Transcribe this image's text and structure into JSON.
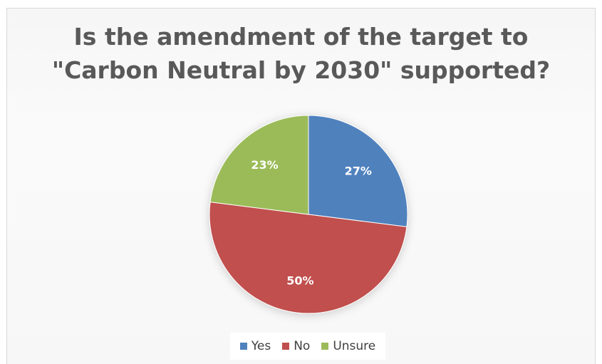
{
  "chart_data": {
    "type": "pie",
    "title": "Is the amendment of the target to \"Carbon Neutral by 2030\" supported?",
    "title_lines": [
      "Is the amendment of the target to",
      "\"Carbon Neutral by 2030\" supported?"
    ],
    "categories": [
      "Yes",
      "No",
      "Unsure"
    ],
    "values": [
      27,
      50,
      23
    ],
    "data_labels": [
      "27%",
      "50%",
      "23%"
    ],
    "colors": [
      "#4f81bd",
      "#c0504d",
      "#9bbb59"
    ],
    "legend_position": "bottom",
    "start_angle_deg": 0,
    "direction": "clockwise"
  }
}
